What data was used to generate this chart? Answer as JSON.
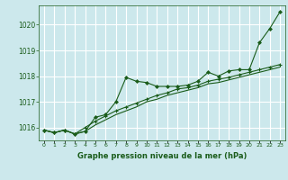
{
  "title": "Graphe pression niveau de la mer (hPa)",
  "bg_color": "#cce8ec",
  "grid_color": "#ffffff",
  "line_color": "#1a5c1a",
  "marker_color": "#1a5c1a",
  "xlim": [
    -0.5,
    23.5
  ],
  "ylim": [
    1015.5,
    1020.75
  ],
  "yticks": [
    1016,
    1017,
    1018,
    1019,
    1020
  ],
  "xtick_labels": [
    "0",
    "1",
    "2",
    "3",
    "4",
    "5",
    "6",
    "7",
    "8",
    "9",
    "10",
    "11",
    "12",
    "13",
    "14",
    "15",
    "16",
    "17",
    "18",
    "19",
    "20",
    "21",
    "22",
    "23"
  ],
  "series0": [
    1015.9,
    1015.8,
    1015.9,
    1015.75,
    1015.85,
    1016.4,
    1016.5,
    1017.0,
    1017.95,
    1017.8,
    1017.75,
    1017.6,
    1017.6,
    1017.6,
    1017.65,
    1017.8,
    1018.15,
    1018.0,
    1018.2,
    1018.25,
    1018.25,
    1019.3,
    1019.85,
    1020.5
  ],
  "series1": [
    1015.9,
    1015.8,
    1015.9,
    1015.75,
    1016.0,
    1016.25,
    1016.45,
    1016.65,
    1016.8,
    1016.95,
    1017.1,
    1017.25,
    1017.35,
    1017.5,
    1017.55,
    1017.65,
    1017.8,
    1017.88,
    1017.95,
    1018.05,
    1018.15,
    1018.25,
    1018.35,
    1018.45
  ],
  "series2": [
    1015.9,
    1015.8,
    1015.9,
    1015.75,
    1015.85,
    1016.1,
    1016.3,
    1016.5,
    1016.65,
    1016.8,
    1017.0,
    1017.1,
    1017.25,
    1017.35,
    1017.45,
    1017.55,
    1017.7,
    1017.75,
    1017.85,
    1017.95,
    1018.05,
    1018.15,
    1018.25,
    1018.35
  ]
}
